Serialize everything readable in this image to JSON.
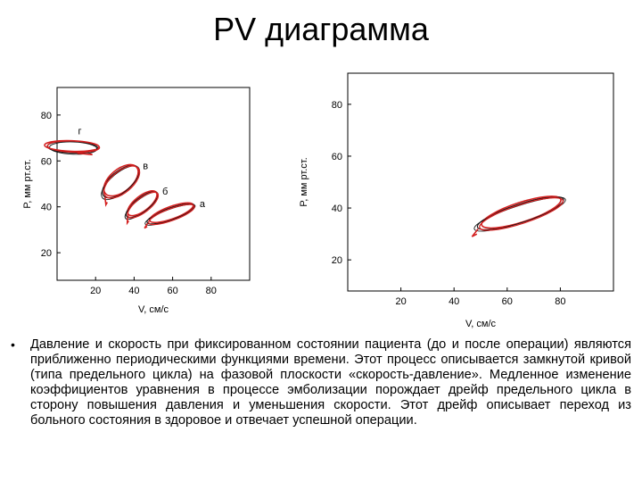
{
  "slide": {
    "title": "PV диаграмма",
    "bullet": "•",
    "paragraph": "Давление и скорость при фиксированном состоянии пациента (до и после операции) являются приближенно периодическими функциями времени. Этот процесс описывается замкнутой кривой (типа предельного цикла) на фазовой плоскости «скорость-давление». Медленное изменение коэффициентов уравнения в процессе эмболизации порождает дрейф предельного цикла в сторону повышения давления и уменьшения скорости. Этот дрейф описывает переход из больного состояния в здоровое и отвечает успешной операции."
  },
  "colors": {
    "curve_red": "#d42020",
    "curve_black": "#111111",
    "axis": "#000000"
  },
  "chart_data": [
    {
      "type": "scatter",
      "title": "",
      "xlabel": "V, см/с",
      "ylabel": "P, мм рт.ст.",
      "xlim": [
        0,
        100
      ],
      "ylim": [
        8,
        92
      ],
      "xticks": [
        20,
        40,
        60,
        80
      ],
      "yticks": [
        20,
        40,
        60,
        80
      ],
      "grid": false,
      "series": [
        {
          "name": "г",
          "center": [
            8,
            66
          ],
          "span": [
            6,
            22
          ],
          "angle": 88
        },
        {
          "name": "в",
          "center": [
            33,
            51
          ],
          "span": [
            23,
            9
          ],
          "angle": 40
        },
        {
          "name": "б",
          "center": [
            44,
            41
          ],
          "span": [
            20,
            6
          ],
          "angle": 38
        },
        {
          "name": "а",
          "center": [
            59,
            37
          ],
          "span": [
            26,
            5
          ],
          "angle": 20
        }
      ]
    },
    {
      "type": "scatter",
      "title": "",
      "xlabel": "V, см/с",
      "ylabel": "P, мм рт.ст.",
      "xlim": [
        0,
        100
      ],
      "ylim": [
        8,
        92
      ],
      "xticks": [
        20,
        40,
        60,
        80
      ],
      "yticks": [
        20,
        40,
        60,
        80
      ],
      "grid": false,
      "series": [
        {
          "name": "",
          "center": [
            65,
            38
          ],
          "span": [
            34,
            7
          ],
          "angle": 18
        }
      ]
    }
  ]
}
